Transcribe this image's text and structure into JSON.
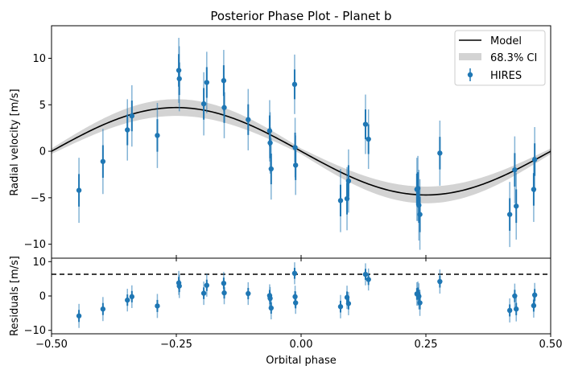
{
  "chart_data": [
    {
      "type": "scatter",
      "title": "Posterior Phase Plot - Planet b",
      "xlabel": "",
      "ylabel": "Radial velocity [m/s]",
      "xlim": [
        -0.5,
        0.5
      ],
      "ylim": [
        -11.5,
        13.5
      ],
      "yticks": [
        -10,
        -5,
        0,
        5,
        10
      ],
      "grid": false,
      "legend_position": "top-right",
      "model": {
        "name": "Model",
        "amplitude": 4.7,
        "phase_of_max": -0.25,
        "color": "#000000"
      },
      "ci_band": {
        "name": "68.3% CI",
        "half_width_at_extrema": 0.9,
        "half_width_at_zero": 0.3,
        "color": "#d3d3d3"
      },
      "series": [
        {
          "name": "HIRES",
          "color": "#1f77b4",
          "x": [
            -0.445,
            -0.397,
            -0.348,
            -0.339,
            -0.288,
            -0.245,
            -0.244,
            -0.195,
            -0.189,
            -0.155,
            -0.154,
            -0.106,
            -0.063,
            -0.062,
            -0.06,
            -0.013,
            -0.012,
            -0.011,
            0.079,
            0.092,
            0.095,
            0.129,
            0.135,
            0.232,
            0.234,
            0.236,
            0.238,
            0.278,
            0.418,
            0.428,
            0.431,
            0.466,
            0.468
          ],
          "y": [
            -4.2,
            -1.1,
            2.3,
            3.8,
            1.7,
            8.7,
            7.8,
            5.1,
            7.4,
            7.6,
            4.7,
            3.4,
            2.2,
            0.9,
            -1.9,
            7.2,
            0.4,
            -1.5,
            -5.3,
            -5.1,
            -3.2,
            2.9,
            1.3,
            -4.1,
            -4.0,
            -5.8,
            -6.8,
            -0.2,
            -6.8,
            -2.0,
            -5.9,
            -4.1,
            -0.9
          ],
          "yerr": [
            3.5,
            3.5,
            3.3,
            3.3,
            3.5,
            3.5,
            3.5,
            3.4,
            3.3,
            3.3,
            3.3,
            3.3,
            3.3,
            3.3,
            3.3,
            3.2,
            3.2,
            3.2,
            3.4,
            3.4,
            3.4,
            3.2,
            3.2,
            3.4,
            3.5,
            3.8,
            3.8,
            3.5,
            3.5,
            3.6,
            3.6,
            3.5,
            3.5
          ]
        }
      ]
    },
    {
      "type": "scatter",
      "title": "",
      "xlabel": "Orbital phase",
      "ylabel": "Residuals [m/s]",
      "xlim": [
        -0.5,
        0.5
      ],
      "ylim": [
        -11,
        11
      ],
      "xticks": [
        -0.5,
        -0.25,
        0.0,
        0.25,
        0.5
      ],
      "xtick_labels": [
        "−0.50",
        "−0.25",
        "0.00",
        "0.25",
        "0.50"
      ],
      "yticks": [
        -10,
        0,
        10
      ],
      "grid": false,
      "zero_line": true,
      "series": [
        {
          "name": "HIRES",
          "color": "#1f77b4",
          "x": [
            -0.445,
            -0.397,
            -0.348,
            -0.339,
            -0.288,
            -0.245,
            -0.244,
            -0.195,
            -0.189,
            -0.155,
            -0.154,
            -0.106,
            -0.063,
            -0.062,
            -0.06,
            -0.013,
            -0.012,
            -0.011,
            0.079,
            0.092,
            0.095,
            0.129,
            0.135,
            0.232,
            0.234,
            0.236,
            0.238,
            0.278,
            0.418,
            0.428,
            0.431,
            0.466,
            0.468
          ],
          "y": [
            -5.8,
            -3.8,
            -1.2,
            -0.2,
            -2.9,
            3.8,
            2.9,
            0.8,
            3.1,
            3.7,
            0.9,
            0.7,
            0.1,
            -0.7,
            -3.5,
            6.6,
            -0.2,
            -2.0,
            -3.1,
            -0.4,
            -2.2,
            6.3,
            4.8,
            0.6,
            0.7,
            -0.1,
            -2.0,
            4.2,
            -4.2,
            0.0,
            -3.8,
            -2.8,
            0.3
          ],
          "yerr": [
            3.5,
            3.5,
            3.3,
            3.3,
            3.5,
            3.5,
            3.5,
            3.4,
            3.3,
            3.3,
            3.3,
            3.3,
            3.3,
            3.3,
            3.3,
            3.2,
            3.2,
            3.2,
            3.4,
            3.4,
            3.4,
            3.2,
            3.2,
            3.4,
            3.5,
            3.8,
            3.8,
            3.5,
            3.5,
            3.6,
            3.6,
            3.5,
            3.5
          ]
        }
      ]
    }
  ]
}
